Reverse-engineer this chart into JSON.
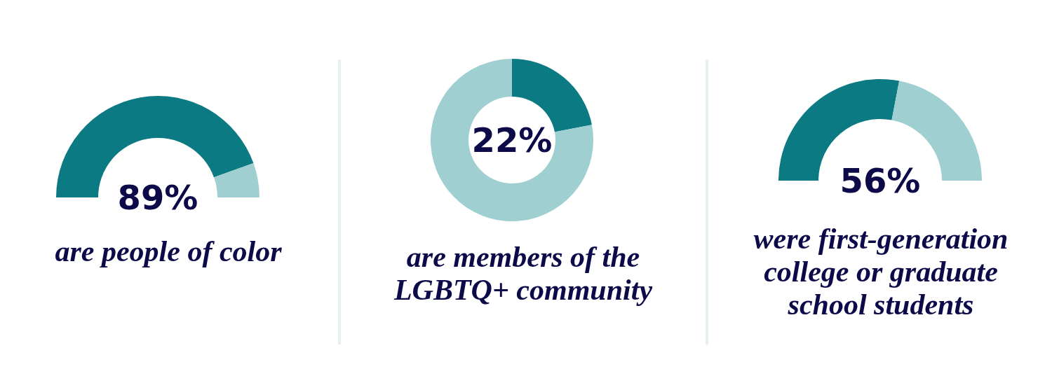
{
  "chart_data": [
    {
      "type": "donut",
      "title": "are people of color",
      "categories": [
        null,
        null
      ],
      "values": [
        89,
        11
      ],
      "colors": [
        "#0b7a82",
        "#9fcfd1"
      ],
      "value_labels": [
        "89%",
        null
      ]
    },
    {
      "type": "donut",
      "title": "are members of the\nLGBTQ+ community",
      "categories": [
        null,
        null
      ],
      "values": [
        22,
        78
      ],
      "colors": [
        "#0b7a82",
        "#9fcfd1"
      ],
      "value_labels": [
        "22%",
        null
      ]
    },
    {
      "type": "donut",
      "title": "were first-generation\ncollege or graduate\nschool students",
      "categories": [
        null,
        null
      ],
      "values": [
        56,
        44
      ],
      "colors": [
        "#0b7a82",
        "#9fcfd1"
      ],
      "value_labels": [
        "56%",
        null
      ]
    }
  ]
}
